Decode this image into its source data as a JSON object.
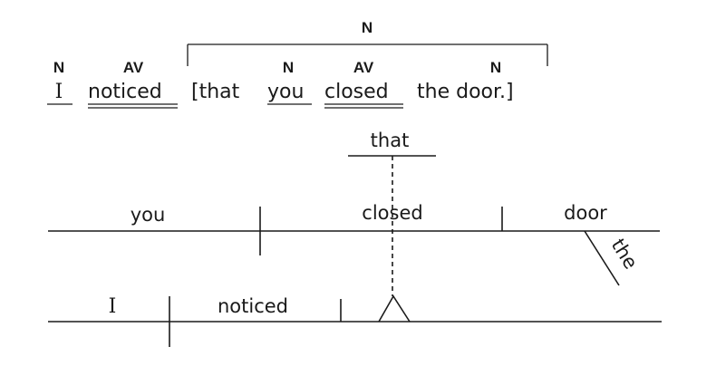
{
  "annotation": {
    "clause_tag": "N",
    "tags": {
      "i": "N",
      "noticed": "AV",
      "you": "N",
      "closed": "AV",
      "door": "N"
    }
  },
  "sentence": {
    "i": "I",
    "noticed": "noticed",
    "bracket_open": "[that",
    "you": "you",
    "closed": "closed",
    "the_door": "the door.]"
  },
  "diagram": {
    "that": "that",
    "you": "you",
    "closed": "closed",
    "door": "door",
    "the": "the",
    "i": "I",
    "noticed": "noticed"
  }
}
